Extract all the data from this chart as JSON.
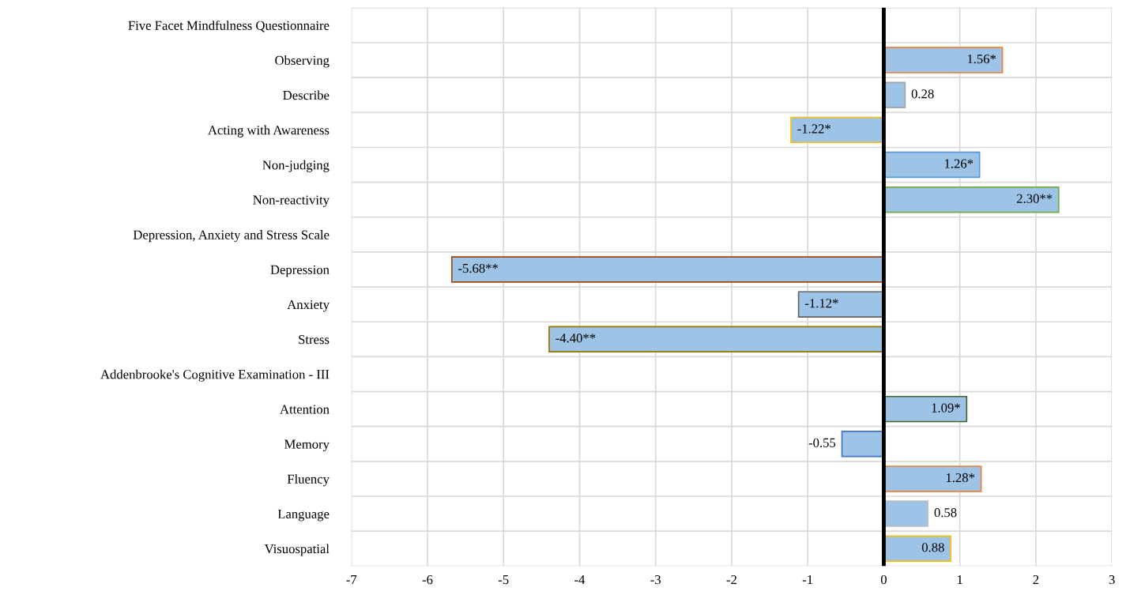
{
  "chart_data": {
    "type": "bar",
    "orientation": "horizontal",
    "categories": [
      "Five Facet Mindfulness Questionnaire",
      "Observing",
      "Describe",
      "Acting with Awareness",
      "Non-judging",
      "Non-reactivity",
      "Depression, Anxiety and Stress Scale",
      "Depression",
      "Anxiety",
      "Stress",
      "Addenbrooke's Cognitive Examination - III",
      "Attention",
      "Memory",
      "Fluency",
      "Language",
      "Visuospatial"
    ],
    "values": [
      null,
      1.56,
      0.28,
      -1.22,
      1.26,
      2.3,
      null,
      -5.68,
      -1.12,
      -4.4,
      null,
      1.09,
      -0.55,
      1.28,
      0.58,
      0.88
    ],
    "value_labels": [
      null,
      "1.56*",
      "0.28",
      "-1.22*",
      "1.26*",
      "2.30**",
      null,
      "-5.68**",
      "-1.12*",
      "-4.40**",
      null,
      "1.09*",
      "-0.55",
      "1.28*",
      "0.58",
      "0.88"
    ],
    "colors": [
      "#9dc3e6",
      "#9dc3e6",
      "#9dc3e6",
      "#9dc3e6",
      "#9dc3e6",
      "#9dc3e6",
      "#9dc3e6",
      "#9dc3e6",
      "#9dc3e6",
      "#9dc3e6",
      "#9dc3e6",
      "#9dc3e6",
      "#9dc3e6",
      "#9dc3e6",
      "#9dc3e6",
      "#9dc3e6"
    ],
    "xlim": [
      -7,
      3
    ],
    "xticks": [
      -7,
      -6,
      -5,
      -4,
      -3,
      -2,
      -1,
      0,
      1,
      2,
      3
    ],
    "grid": true,
    "legend": false
  }
}
